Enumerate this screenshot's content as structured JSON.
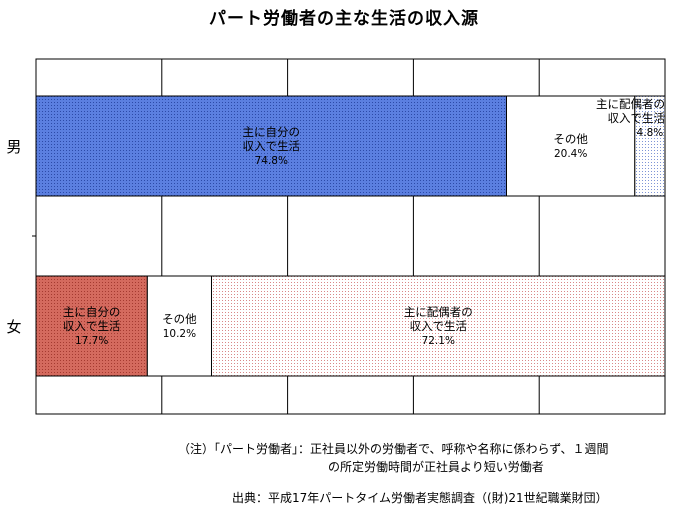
{
  "chart_data": {
    "type": "bar",
    "stacked": true,
    "orientation": "horizontal",
    "title": "パート労働者の主な生活の収入源",
    "xlim": [
      0,
      100
    ],
    "grid": true,
    "categories": [
      "男",
      "女"
    ],
    "rows": [
      {
        "category": "男",
        "segments": [
          {
            "label_lines": [
              "主に自分の",
              "収入で生活"
            ],
            "value_label": "74.8%",
            "value": 74.8,
            "color": "#5b7fe0",
            "pattern": "dots-blue"
          },
          {
            "label_lines": [
              "その他"
            ],
            "value_label": "20.4%",
            "value": 20.4,
            "color": "#ffffff",
            "pattern": "none"
          },
          {
            "label_lines": [
              "主に配偶者の",
              "収入で生活"
            ],
            "value_label": "4.8%",
            "value": 4.8,
            "color": "#c8d2ee",
            "pattern": "dots-light"
          }
        ]
      },
      {
        "category": "女",
        "segments": [
          {
            "label_lines": [
              "主に自分の",
              "収入で生活"
            ],
            "value_label": "17.7%",
            "value": 17.7,
            "color": "#d46a5e",
            "pattern": "dots-red"
          },
          {
            "label_lines": [
              "その他"
            ],
            "value_label": "10.2%",
            "value": 10.2,
            "color": "#ffffff",
            "pattern": "none"
          },
          {
            "label_lines": [
              "主に配偶者の",
              "収入で生活"
            ],
            "value_label": "72.1%",
            "value": 72.1,
            "color": "#f8dada",
            "pattern": "dots-pink"
          }
        ]
      }
    ]
  },
  "notes": {
    "line1": "（注）「パート労働者」：正社員以外の労働者で、呼称や名称に係わらず、１週間",
    "line2": "の所定労働時間が正社員より短い労働者",
    "source": "出典：平成17年パートタイム労働者実態調査（(財)21世紀職業財団）"
  }
}
